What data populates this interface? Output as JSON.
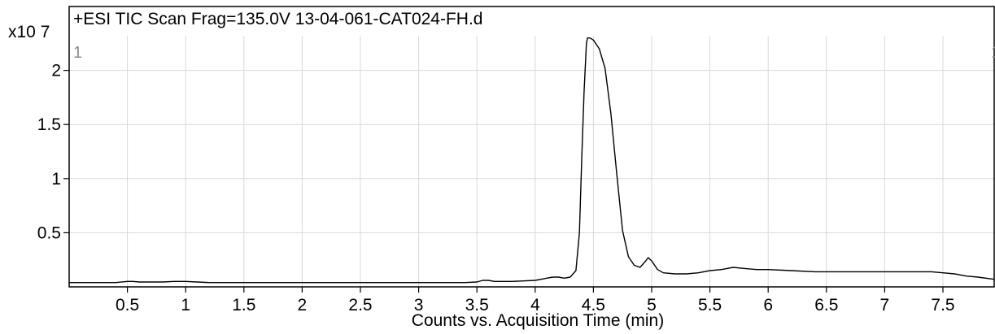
{
  "chart_data": {
    "type": "line",
    "title": "+ESI TIC Scan Frag=135.0V 13-04-061-CAT024-FH.d",
    "xlabel": "Counts vs. Acquisition Time (min)",
    "ylabel": "",
    "y_exponent_label": "x10 7",
    "x_marker_left": "1",
    "x_marker_right": "1",
    "xlim": [
      0.0,
      7.94
    ],
    "ylim": [
      0.0,
      2.32
    ],
    "x_ticks": [
      0.5,
      1,
      1.5,
      2,
      2.5,
      3,
      3.5,
      4,
      4.5,
      5,
      5.5,
      6,
      6.5,
      7,
      7.5
    ],
    "x_tick_labels": [
      "0.5",
      "1",
      "1.5",
      "2",
      "2.5",
      "3",
      "3.5",
      "4",
      "4.5",
      "5",
      "5.5",
      "6",
      "6.5",
      "7",
      "7.5"
    ],
    "y_ticks": [
      0.5,
      1,
      1.5,
      2
    ],
    "y_tick_labels": [
      "0.5",
      "1",
      "1.5",
      "2"
    ],
    "grid": true,
    "series": [
      {
        "x": [
          0.0,
          0.4,
          0.5,
          0.55,
          0.6,
          0.8,
          0.9,
          1.0,
          1.1,
          1.2,
          1.5,
          2.0,
          2.5,
          3.0,
          3.4,
          3.5,
          3.55,
          3.6,
          3.65,
          3.7,
          3.8,
          4.0,
          4.1,
          4.15,
          4.2,
          4.25,
          4.3,
          4.35,
          4.38,
          4.4,
          4.42,
          4.44,
          4.45,
          4.47,
          4.5,
          4.55,
          4.6,
          4.65,
          4.7,
          4.75,
          4.8,
          4.85,
          4.9,
          4.95,
          4.97,
          5.0,
          5.05,
          5.1,
          5.2,
          5.3,
          5.4,
          5.5,
          5.6,
          5.7,
          5.8,
          5.9,
          6.0,
          6.2,
          6.4,
          6.6,
          6.8,
          7.0,
          7.2,
          7.4,
          7.5,
          7.6,
          7.7,
          7.8,
          7.94
        ],
        "y": [
          0.04,
          0.04,
          0.05,
          0.05,
          0.045,
          0.045,
          0.05,
          0.05,
          0.045,
          0.04,
          0.04,
          0.04,
          0.04,
          0.04,
          0.04,
          0.045,
          0.06,
          0.06,
          0.05,
          0.05,
          0.05,
          0.06,
          0.08,
          0.09,
          0.09,
          0.08,
          0.09,
          0.15,
          0.5,
          1.2,
          1.8,
          2.25,
          2.3,
          2.3,
          2.28,
          2.2,
          2.02,
          1.6,
          1.05,
          0.52,
          0.28,
          0.2,
          0.18,
          0.24,
          0.27,
          0.24,
          0.16,
          0.13,
          0.12,
          0.12,
          0.13,
          0.15,
          0.16,
          0.18,
          0.17,
          0.16,
          0.16,
          0.15,
          0.14,
          0.14,
          0.14,
          0.14,
          0.14,
          0.14,
          0.13,
          0.12,
          0.1,
          0.09,
          0.07
        ]
      }
    ]
  }
}
